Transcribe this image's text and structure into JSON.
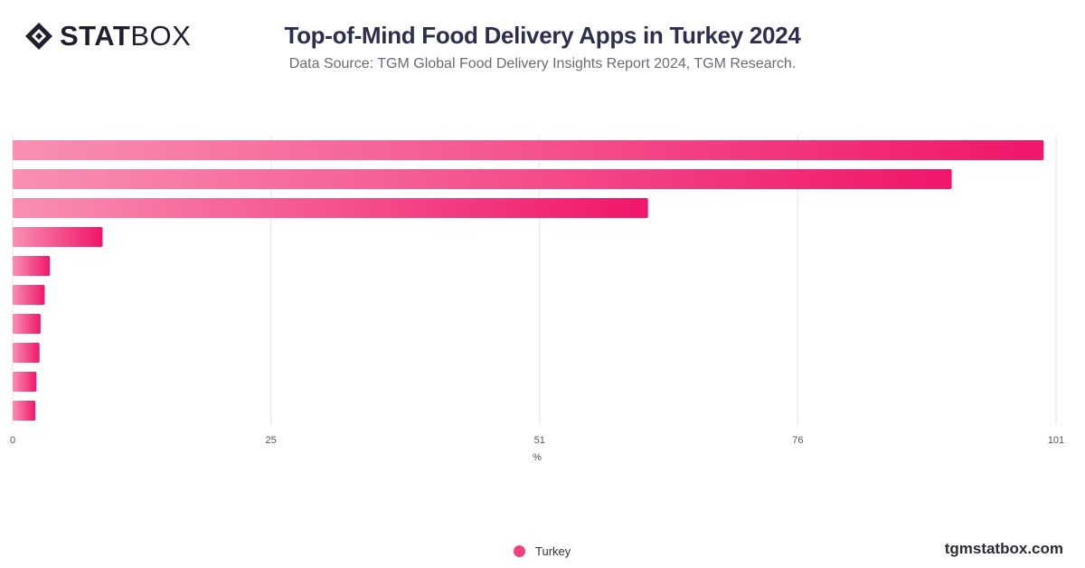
{
  "header": {
    "logo_bold": "STAT",
    "logo_thin": "BOX",
    "title": "Top-of-Mind Food Delivery Apps in Turkey 2024",
    "subtitle": "Data Source: TGM Global Food Delivery Insights Report 2024, TGM Research."
  },
  "footer": {
    "site": "tgmstatbox.com"
  },
  "colors": {
    "bar_start": "#f98fb2",
    "bar_end": "#f0166b",
    "grid": "#e3e3e3",
    "legend": "#f0417e"
  },
  "chart_data": {
    "type": "bar",
    "orientation": "horizontal",
    "categories": [
      "",
      "",
      "",
      "",
      "",
      "",
      "",
      "",
      "",
      ""
    ],
    "series": [
      {
        "name": "Turkey",
        "values": [
          99.8,
          90.9,
          61.5,
          8.7,
          3.6,
          3.1,
          2.7,
          2.6,
          2.3,
          2.2
        ]
      }
    ],
    "xlabel": "%",
    "ylabel": "",
    "xlim": [
      0,
      101
    ],
    "ticks": [
      "0",
      "25",
      "51",
      "76",
      "101"
    ],
    "grid": true,
    "legend": "bottom-center"
  }
}
